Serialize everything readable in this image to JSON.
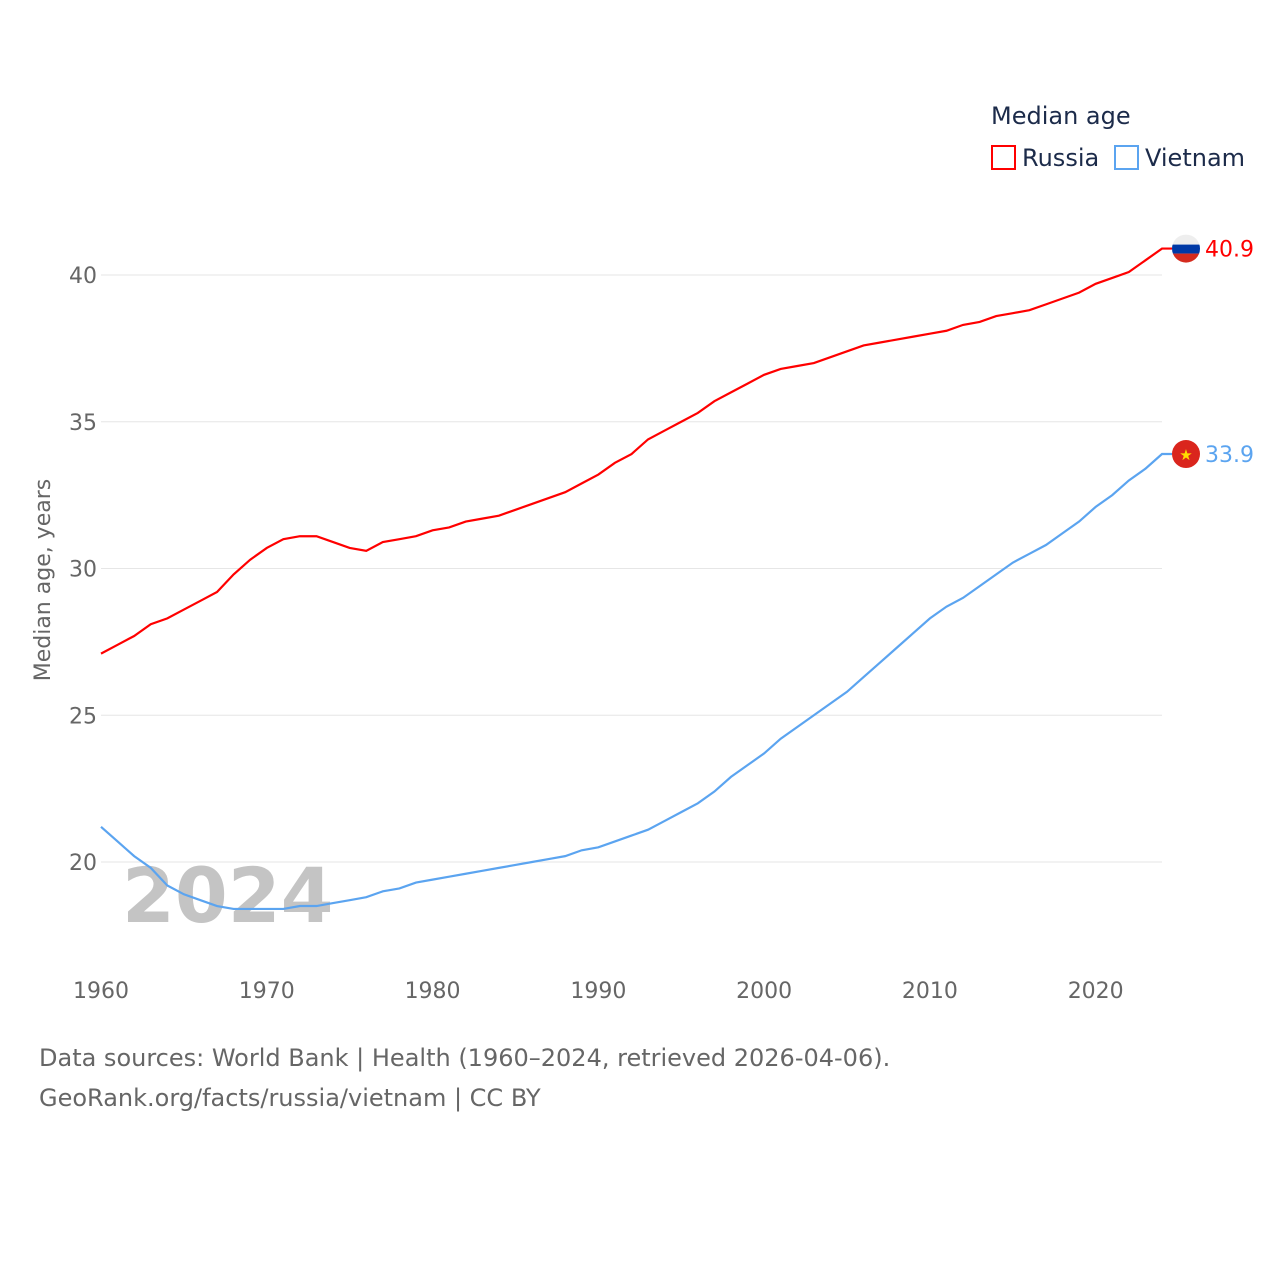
{
  "chart_data": {
    "type": "line",
    "title": "",
    "legend_title": "Median age",
    "legend_position": "top-right",
    "xlabel": "",
    "ylabel": "Median age, years",
    "xlim": [
      1960,
      2024
    ],
    "ylim": [
      17.5,
      42
    ],
    "x_ticks": [
      "1960",
      "1970",
      "1980",
      "1990",
      "2000",
      "2010",
      "2020"
    ],
    "y_ticks": [
      "20",
      "25",
      "30",
      "35",
      "40"
    ],
    "grid": true,
    "watermark_year": "2024",
    "x": [
      1960,
      1961,
      1962,
      1963,
      1964,
      1965,
      1966,
      1967,
      1968,
      1969,
      1970,
      1971,
      1972,
      1973,
      1974,
      1975,
      1976,
      1977,
      1978,
      1979,
      1980,
      1981,
      1982,
      1983,
      1984,
      1985,
      1986,
      1987,
      1988,
      1989,
      1990,
      1991,
      1992,
      1993,
      1994,
      1995,
      1996,
      1997,
      1998,
      1999,
      2000,
      2001,
      2002,
      2003,
      2004,
      2005,
      2006,
      2007,
      2008,
      2009,
      2010,
      2011,
      2012,
      2013,
      2014,
      2015,
      2016,
      2017,
      2018,
      2019,
      2020,
      2021,
      2022,
      2023,
      2024
    ],
    "series": [
      {
        "name": "Russia",
        "color": "#ff0000",
        "end_label": "40.9",
        "values": [
          27.1,
          27.4,
          27.7,
          28.1,
          28.3,
          28.6,
          28.9,
          29.2,
          29.8,
          30.3,
          30.7,
          31.0,
          31.1,
          31.1,
          30.9,
          30.7,
          30.6,
          30.9,
          31.0,
          31.1,
          31.3,
          31.4,
          31.6,
          31.7,
          31.8,
          32.0,
          32.2,
          32.4,
          32.6,
          32.9,
          33.2,
          33.6,
          33.9,
          34.4,
          34.7,
          35.0,
          35.3,
          35.7,
          36.0,
          36.3,
          36.6,
          36.8,
          36.9,
          37.0,
          37.2,
          37.4,
          37.6,
          37.7,
          37.8,
          37.9,
          38.0,
          38.1,
          38.3,
          38.4,
          38.6,
          38.7,
          38.8,
          39.0,
          39.2,
          39.4,
          39.7,
          39.9,
          40.1,
          40.5,
          40.9
        ]
      },
      {
        "name": "Vietnam",
        "color": "#5ba4f0",
        "end_label": "33.9",
        "values": [
          21.2,
          20.7,
          20.2,
          19.8,
          19.2,
          18.9,
          18.7,
          18.5,
          18.4,
          18.4,
          18.4,
          18.4,
          18.5,
          18.5,
          18.6,
          18.7,
          18.8,
          19.0,
          19.1,
          19.3,
          19.4,
          19.5,
          19.6,
          19.7,
          19.8,
          19.9,
          20.0,
          20.1,
          20.2,
          20.4,
          20.5,
          20.7,
          20.9,
          21.1,
          21.4,
          21.7,
          22.0,
          22.4,
          22.9,
          23.3,
          23.7,
          24.2,
          24.6,
          25.0,
          25.4,
          25.8,
          26.3,
          26.8,
          27.3,
          27.8,
          28.3,
          28.7,
          29.0,
          29.4,
          29.8,
          30.2,
          30.5,
          30.8,
          31.2,
          31.6,
          32.1,
          32.5,
          33.0,
          33.4,
          33.9
        ]
      }
    ]
  },
  "footer": {
    "line1": "Data sources: World Bank | Health (1960–2024, retrieved 2026-04-06).",
    "line2": "GeoRank.org/facts/russia/vietnam | CC BY"
  }
}
